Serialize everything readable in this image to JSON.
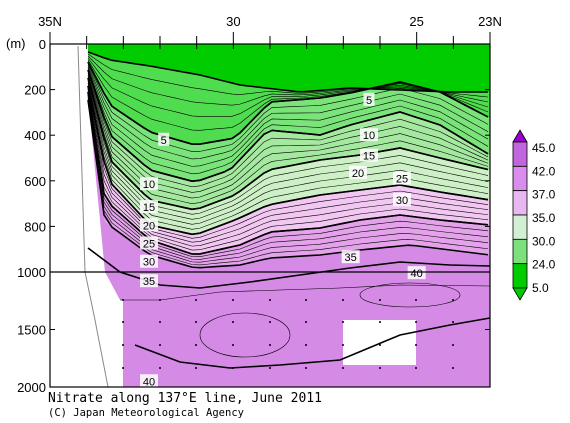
{
  "chart_data": {
    "type": "contour",
    "title": "Nitrate along 137°E line, June 2011",
    "credit": "(C) Japan Meteorological Agency",
    "x_axis": {
      "label": "",
      "ticks": [
        {
          "label": "35N",
          "lat": 35
        },
        {
          "label": "30",
          "lat": 30
        },
        {
          "label": "25",
          "lat": 25
        },
        {
          "label": "23N",
          "lat": 23
        }
      ],
      "range": [
        35,
        23
      ]
    },
    "y_axis": {
      "unit_label": "(m)",
      "ticks": [
        "0",
        "200",
        "400",
        "600",
        "800",
        "1000",
        "1500",
        "2000"
      ],
      "upper_range": [
        0,
        1000
      ],
      "lower_range": [
        1000,
        2000
      ]
    },
    "legend": {
      "levels": [
        "45.0",
        "42.0",
        "37.0",
        "35.0",
        "30.0",
        "24.0",
        "5.0"
      ],
      "colors": [
        "#9900cc",
        "#c266e0",
        "#d98ceb",
        "#e8b8f0",
        "#d4f0d4",
        "#7ce07c",
        "#00cc00"
      ]
    },
    "fill_colors": [
      "#1ed61e",
      "#4fdd4f",
      "#7ae37a",
      "#a5e9a0",
      "#cdf0c6",
      "#f2c8f2",
      "#e3a2ea",
      "#d58ae6"
    ],
    "contour_labels": [
      {
        "text": "5",
        "lat": 31.9,
        "depth": 420
      },
      {
        "text": "5",
        "lat": 26.3,
        "depth": 245
      },
      {
        "text": "10",
        "lat": 32.3,
        "depth": 615
      },
      {
        "text": "10",
        "lat": 26.3,
        "depth": 400
      },
      {
        "text": "15",
        "lat": 32.3,
        "depth": 715
      },
      {
        "text": "15",
        "lat": 26.3,
        "depth": 490
      },
      {
        "text": "20",
        "lat": 32.3,
        "depth": 795
      },
      {
        "text": "20",
        "lat": 26.6,
        "depth": 565
      },
      {
        "text": "25",
        "lat": 32.3,
        "depth": 875
      },
      {
        "text": "25",
        "lat": 25.4,
        "depth": 590
      },
      {
        "text": "30",
        "lat": 32.3,
        "depth": 955
      },
      {
        "text": "30",
        "lat": 25.4,
        "depth": 685
      },
      {
        "text": "35",
        "lat": 32.3,
        "depth": 1080
      },
      {
        "text": "35",
        "lat": 26.8,
        "depth": 935
      },
      {
        "text": "40",
        "lat": 25.0,
        "depth": 1010
      },
      {
        "text": "40",
        "lat": 32.3,
        "depth": 1950
      }
    ]
  }
}
